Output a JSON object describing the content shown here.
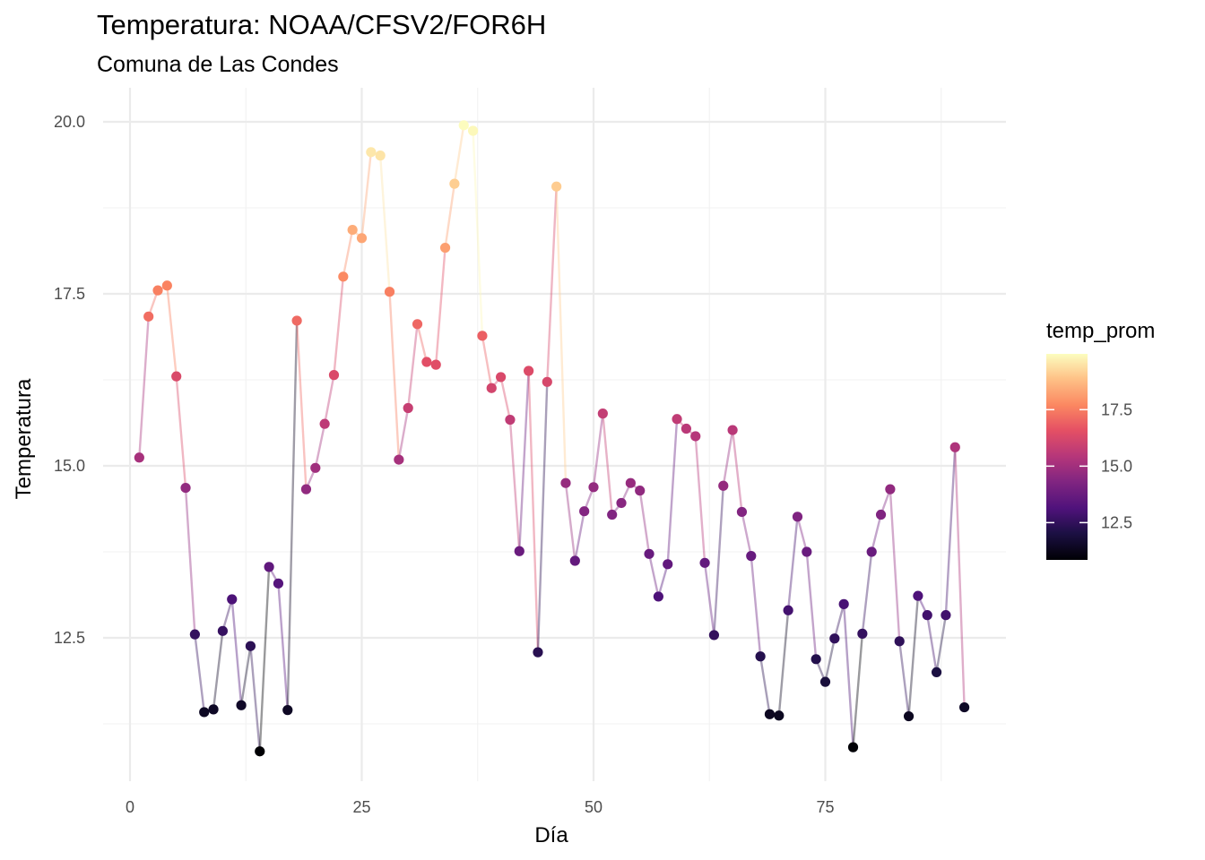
{
  "chart_data": {
    "type": "line",
    "title": "Temperatura: NOAA/CFSV2/FOR6H",
    "subtitle": "Comuna de Las Condes",
    "xlabel": "Día",
    "ylabel": "Temperatura",
    "xlim": [
      -0.5,
      94
    ],
    "ylim": [
      10.6,
      20.6
    ],
    "x_ticks": [
      0,
      25,
      50,
      75
    ],
    "x_tick_labels": [
      "0",
      "25",
      "50",
      "75"
    ],
    "y_ticks": [
      12.5,
      15.0,
      17.5,
      20.0
    ],
    "y_tick_labels": [
      "12.5",
      "15.0",
      "17.5",
      "20.0"
    ],
    "grid": true,
    "legend": {
      "title": "temp_prom",
      "position": "right",
      "type": "colorbar",
      "range": [
        10.85,
        19.97
      ],
      "ticks": [
        12.5,
        15.0,
        17.5
      ],
      "tick_labels": [
        "12.5",
        "15.0",
        "17.5"
      ],
      "palette": "magma"
    },
    "series": [
      {
        "x": [
          1,
          2,
          3,
          4,
          5,
          6,
          7,
          8,
          9,
          10,
          11,
          12,
          13,
          14,
          15,
          16,
          17,
          18,
          19,
          20,
          21,
          22,
          23,
          24,
          25,
          26,
          27,
          28,
          29,
          30,
          31,
          32,
          33,
          34,
          35,
          36,
          37,
          38,
          39,
          40,
          41,
          42,
          43,
          44,
          45,
          46,
          47,
          48,
          49,
          50,
          51,
          52,
          53,
          54,
          55,
          56,
          57,
          58,
          59,
          60,
          61,
          62,
          63,
          64,
          65,
          66,
          67,
          68,
          69,
          70,
          71,
          72,
          73,
          74,
          75,
          76,
          77,
          78,
          79,
          80,
          81,
          82,
          83,
          84,
          85,
          86,
          87,
          88,
          89,
          90
        ],
        "values": [
          15.12,
          17.17,
          17.55,
          17.62,
          16.3,
          14.68,
          12.55,
          11.42,
          11.46,
          12.6,
          13.06,
          11.52,
          12.38,
          10.85,
          13.53,
          13.29,
          11.45,
          17.11,
          14.66,
          14.97,
          15.61,
          16.32,
          17.75,
          18.43,
          18.31,
          19.56,
          19.51,
          17.53,
          15.09,
          15.84,
          17.06,
          16.51,
          16.47,
          18.17,
          19.1,
          19.95,
          19.87,
          16.89,
          16.13,
          16.29,
          15.67,
          13.76,
          16.38,
          12.29,
          16.22,
          19.06,
          14.75,
          13.62,
          14.34,
          14.69,
          15.76,
          14.29,
          14.46,
          14.75,
          14.64,
          13.72,
          13.1,
          13.57,
          15.68,
          15.54,
          15.43,
          13.59,
          12.54,
          14.71,
          15.52,
          14.33,
          13.69,
          12.23,
          11.39,
          11.37,
          12.9,
          14.26,
          13.75,
          12.19,
          11.86,
          12.49,
          12.99,
          10.91,
          12.56,
          13.75,
          14.29,
          14.66,
          12.45,
          11.36,
          13.11,
          12.83,
          12.0,
          12.83,
          15.27,
          11.49
        ]
      }
    ]
  }
}
